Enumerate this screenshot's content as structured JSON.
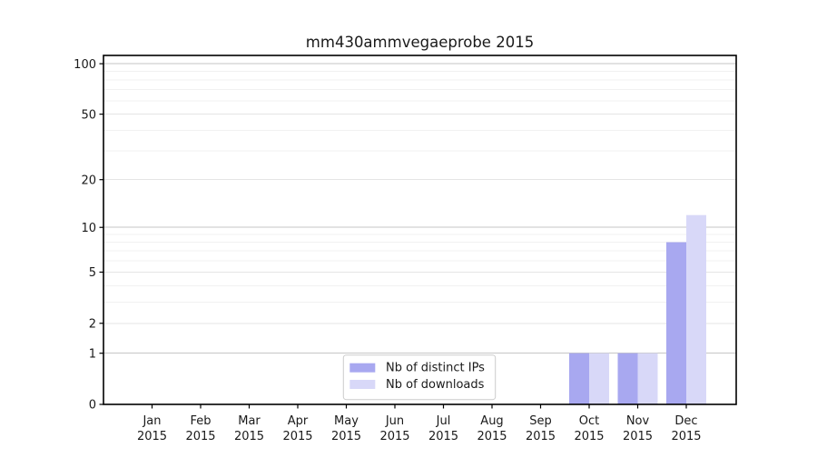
{
  "figure": {
    "title": "mm430ammvegaeprobe 2015"
  },
  "chart_data": {
    "type": "bar",
    "title": "mm430ammvegaeprobe 2015",
    "categories": [
      "Jan",
      "Feb",
      "Mar",
      "Apr",
      "May",
      "Jun",
      "Jul",
      "Aug",
      "Sep",
      "Oct",
      "Nov",
      "Dec"
    ],
    "category_sublabel": "2015",
    "series": [
      {
        "name": "Nb of distinct IPs",
        "color": "#a8a8f0",
        "values": [
          0,
          0,
          0,
          0,
          0,
          0,
          0,
          0,
          0,
          1,
          1,
          8
        ]
      },
      {
        "name": "Nb of downloads",
        "color": "#d8d8f8",
        "values": [
          0,
          0,
          0,
          0,
          0,
          0,
          0,
          0,
          0,
          1,
          1,
          12
        ]
      }
    ],
    "xlabel": "",
    "ylabel": "",
    "yscale": "log1p",
    "ylim": [
      0,
      112
    ],
    "yticks": [
      0,
      1,
      2,
      5,
      10,
      20,
      50,
      100
    ],
    "yticks_strong": [
      1,
      10,
      100
    ],
    "yticks_mid": [
      2,
      5,
      20,
      50
    ],
    "yticks_minor": [
      3,
      4,
      6,
      7,
      8,
      9,
      30,
      40,
      60,
      70,
      80,
      90
    ],
    "grid": true,
    "legend_position": "lower center"
  }
}
